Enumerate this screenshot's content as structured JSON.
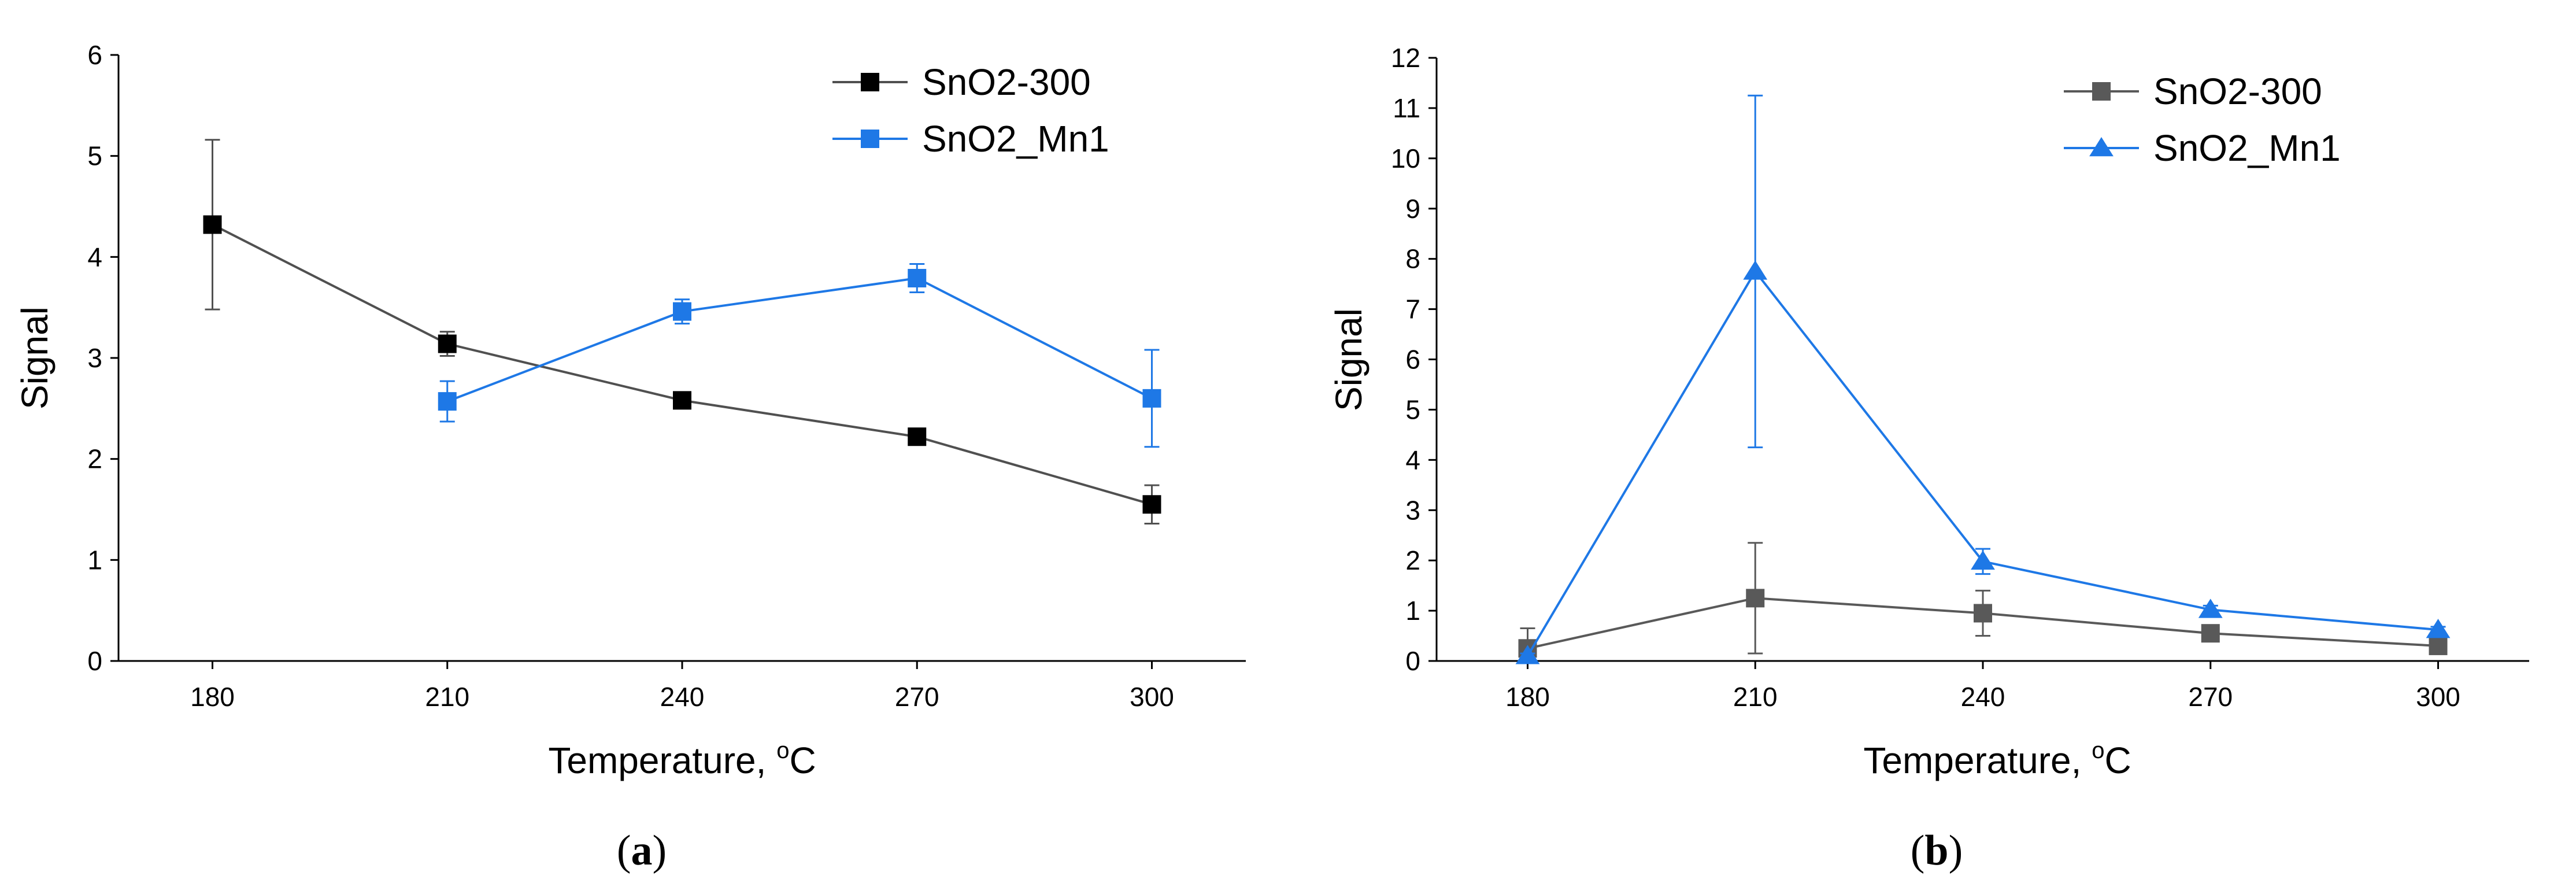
{
  "chart_data": [
    {
      "type": "line",
      "panel_label": "a",
      "xlabel": "Temperature, ",
      "xlabel_sup": "o",
      "xlabel_unit": "C",
      "ylabel": "Signal",
      "x": [
        180,
        210,
        240,
        270,
        300
      ],
      "xlim": [
        168,
        312
      ],
      "ylim": [
        0,
        6
      ],
      "yticks": [
        0,
        1,
        2,
        3,
        4,
        5,
        6
      ],
      "legend_position": "top-right",
      "series": [
        {
          "name": "SnO2-300",
          "color": "#000000",
          "line_color": "#505050",
          "marker": "square",
          "x": [
            180,
            210,
            240,
            270,
            300
          ],
          "y": [
            4.32,
            3.14,
            2.58,
            2.22,
            1.55
          ],
          "err": [
            0.84,
            0.12,
            0.05,
            0.05,
            0.19
          ]
        },
        {
          "name": "SnO2_Mn1",
          "color": "#1e78e6",
          "line_color": "#1e78e6",
          "marker": "square",
          "x": [
            210,
            240,
            270,
            300
          ],
          "y": [
            2.57,
            3.46,
            3.79,
            2.6
          ],
          "err": [
            0.2,
            0.12,
            0.14,
            0.48
          ]
        }
      ]
    },
    {
      "type": "line",
      "panel_label": "b",
      "xlabel": "Temperature, ",
      "xlabel_sup": "o",
      "xlabel_unit": "C",
      "ylabel": "Signal",
      "x": [
        180,
        210,
        240,
        270,
        300
      ],
      "xlim": [
        168,
        312
      ],
      "ylim": [
        0,
        12
      ],
      "yticks": [
        0,
        1,
        2,
        3,
        4,
        5,
        6,
        7,
        8,
        9,
        10,
        11,
        12
      ],
      "legend_position": "top-right",
      "series": [
        {
          "name": "SnO2-300",
          "color": "#595959",
          "line_color": "#595959",
          "marker": "square",
          "x": [
            180,
            210,
            240,
            270,
            300
          ],
          "y": [
            0.25,
            1.25,
            0.95,
            0.55,
            0.3
          ],
          "err": [
            0.4,
            1.1,
            0.45,
            0.1,
            0.05
          ]
        },
        {
          "name": "SnO2_Mn1",
          "color": "#1e78e6",
          "line_color": "#1e78e6",
          "marker": "triangle",
          "x": [
            180,
            210,
            240,
            270,
            300
          ],
          "y": [
            0.1,
            7.75,
            1.98,
            1.02,
            0.62
          ],
          "err": [
            0.05,
            3.5,
            0.25,
            0.08,
            0.06
          ]
        }
      ]
    }
  ]
}
